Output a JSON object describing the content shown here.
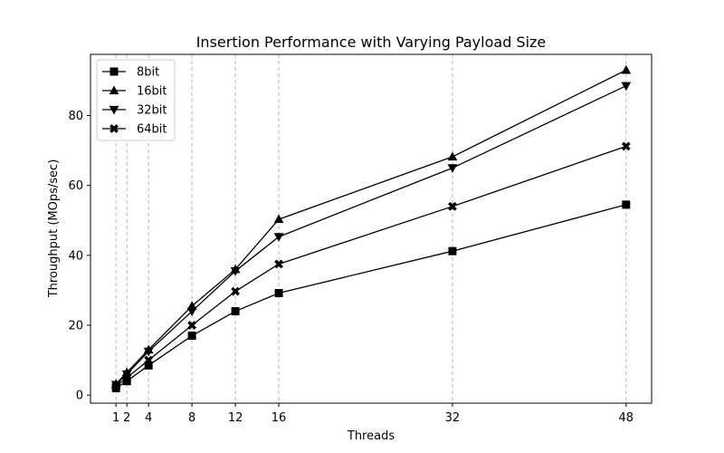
{
  "chart_data": {
    "type": "line",
    "title": "Insertion Performance with Varying Payload Size",
    "xlabel": "Threads",
    "ylabel": "Throughput (MOps/sec)",
    "x": [
      1,
      2,
      4,
      8,
      12,
      16,
      32,
      48
    ],
    "xticks": [
      1,
      2,
      4,
      8,
      12,
      16,
      32,
      48
    ],
    "yticks": [
      0,
      20,
      40,
      60,
      80
    ],
    "xlim": [
      -1.35,
      50.35
    ],
    "ylim": [
      -2.3,
      97.5
    ],
    "grid": "x-major dashed",
    "legend_position": "top-left",
    "series": [
      {
        "name": "8bit",
        "marker": "square",
        "values": [
          2.0,
          4.0,
          8.5,
          17.0,
          24.0,
          29.2,
          41.2,
          54.5
        ]
      },
      {
        "name": "16bit",
        "marker": "triangle-up",
        "values": [
          3.2,
          6.5,
          13.0,
          25.5,
          36.0,
          50.3,
          68.2,
          93.0
        ]
      },
      {
        "name": "32bit",
        "marker": "triangle-down",
        "values": [
          3.0,
          6.0,
          12.5,
          24.0,
          35.5,
          45.3,
          65.0,
          88.5
        ]
      },
      {
        "name": "64bit",
        "marker": "x-filled",
        "values": [
          2.5,
          5.0,
          10.0,
          20.0,
          29.7,
          37.5,
          54.0,
          71.2
        ]
      }
    ],
    "colors": {
      "line": "#000000",
      "grid": "#b0b0b0",
      "background": "#ffffff"
    }
  }
}
